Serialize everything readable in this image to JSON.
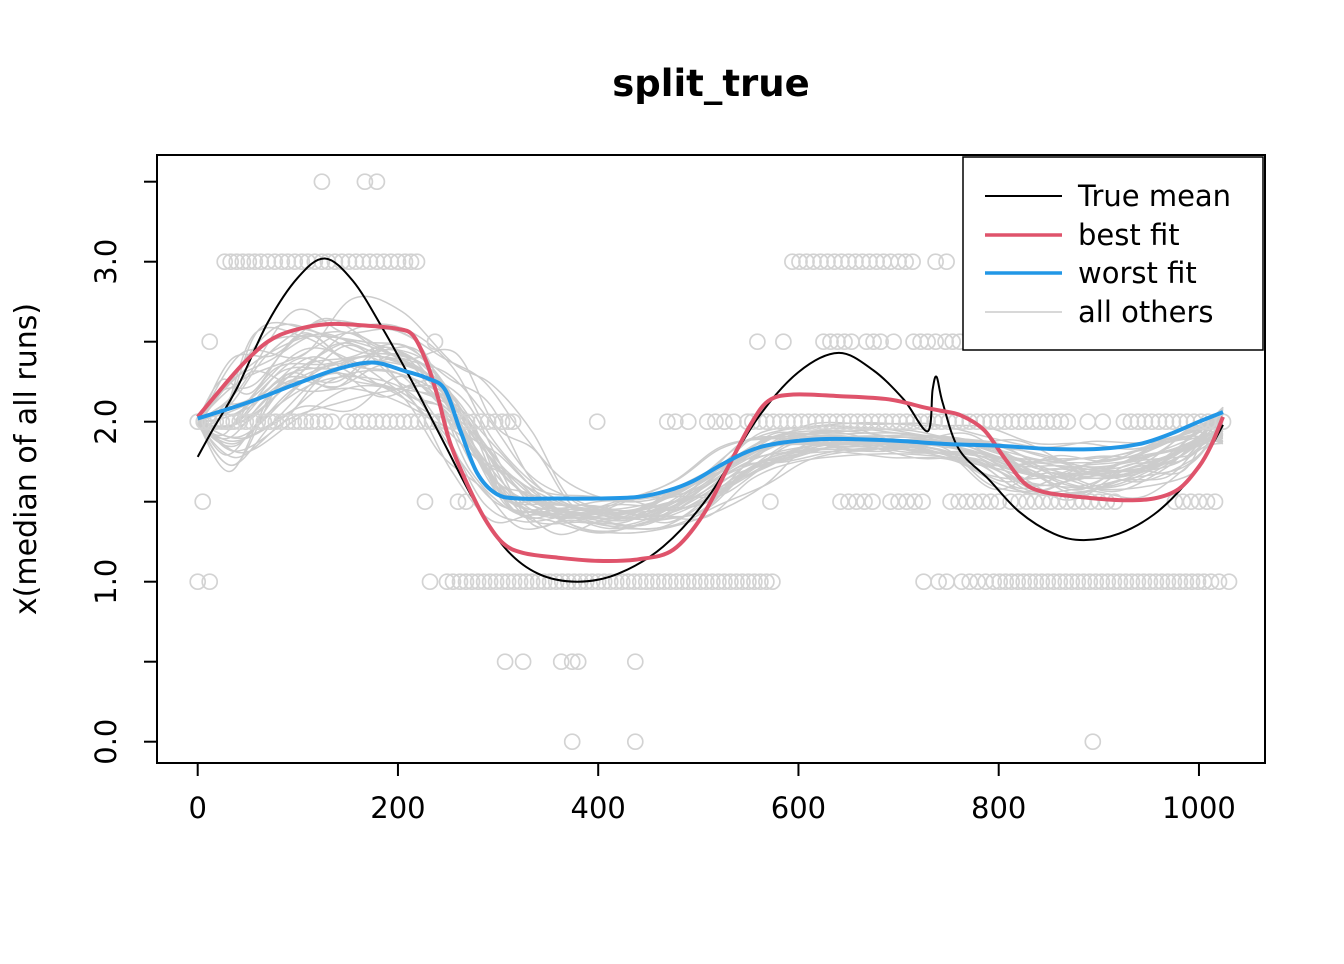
{
  "title": "split_true",
  "colors": {
    "true_mean": "#000000",
    "best_fit": "#DF536B",
    "worst_fit": "#2297E6",
    "ensemble_line": "#CCCCCC",
    "scatter_circle": "#D3D3D3",
    "axis": "#000000",
    "background": "#FFFFFF"
  },
  "chart_data": {
    "type": "line",
    "title": "split_true",
    "xlabel": "",
    "ylabel": "x(median of all runs)",
    "xlim": [
      -40,
      1066
    ],
    "ylim": [
      -0.15,
      3.67
    ],
    "x_ticks": [
      0,
      200,
      400,
      600,
      800,
      1000
    ],
    "y_ticks_labeled": [
      0.0,
      1.0,
      2.0,
      3.0
    ],
    "y_ticks_minor": [
      0.5,
      1.5,
      2.5,
      3.5
    ],
    "grid": "off",
    "legend": {
      "position": "top-right",
      "entries": [
        {
          "label": "True mean",
          "color": "#000000",
          "width": 2
        },
        {
          "label": "best fit",
          "color": "#DF536B",
          "width": 3.5
        },
        {
          "label": "worst fit",
          "color": "#2297E6",
          "width": 3.5
        },
        {
          "label": "all others",
          "color": "#CCCCCC",
          "width": 1.5
        }
      ]
    },
    "series": [
      {
        "name": "True mean",
        "color": "#000000",
        "width": 2,
        "points": [
          [
            0,
            1.78
          ],
          [
            15,
            1.95
          ],
          [
            40,
            2.22
          ],
          [
            70,
            2.62
          ],
          [
            100,
            2.9
          ],
          [
            127,
            3.02
          ],
          [
            155,
            2.88
          ],
          [
            185,
            2.58
          ],
          [
            215,
            2.24
          ],
          [
            245,
            1.88
          ],
          [
            275,
            1.52
          ],
          [
            307,
            1.21
          ],
          [
            340,
            1.05
          ],
          [
            379,
            1.0
          ],
          [
            420,
            1.05
          ],
          [
            465,
            1.22
          ],
          [
            510,
            1.53
          ],
          [
            559,
            2.02
          ],
          [
            600,
            2.31
          ],
          [
            640,
            2.43
          ],
          [
            675,
            2.32
          ],
          [
            705,
            2.14
          ],
          [
            729,
            1.94
          ],
          [
            734,
            2.2
          ],
          [
            738,
            2.28
          ],
          [
            744,
            2.12
          ],
          [
            760,
            1.83
          ],
          [
            790,
            1.64
          ],
          [
            820,
            1.44
          ],
          [
            855,
            1.3
          ],
          [
            885,
            1.26
          ],
          [
            920,
            1.3
          ],
          [
            955,
            1.42
          ],
          [
            985,
            1.6
          ],
          [
            1008,
            1.8
          ],
          [
            1024,
            1.98
          ]
        ]
      },
      {
        "name": "best fit",
        "color": "#DF536B",
        "width": 4,
        "points": [
          [
            0,
            2.03
          ],
          [
            20,
            2.18
          ],
          [
            45,
            2.36
          ],
          [
            70,
            2.5
          ],
          [
            95,
            2.57
          ],
          [
            130,
            2.61
          ],
          [
            170,
            2.6
          ],
          [
            200,
            2.58
          ],
          [
            215,
            2.54
          ],
          [
            228,
            2.38
          ],
          [
            240,
            2.15
          ],
          [
            252,
            1.87
          ],
          [
            270,
            1.6
          ],
          [
            287,
            1.39
          ],
          [
            305,
            1.24
          ],
          [
            325,
            1.18
          ],
          [
            360,
            1.15
          ],
          [
            400,
            1.13
          ],
          [
            440,
            1.14
          ],
          [
            475,
            1.2
          ],
          [
            505,
            1.42
          ],
          [
            530,
            1.72
          ],
          [
            552,
            1.98
          ],
          [
            570,
            2.13
          ],
          [
            595,
            2.17
          ],
          [
            640,
            2.16
          ],
          [
            690,
            2.14
          ],
          [
            725,
            2.09
          ],
          [
            741,
            2.07
          ],
          [
            762,
            2.04
          ],
          [
            785,
            1.95
          ],
          [
            805,
            1.78
          ],
          [
            825,
            1.62
          ],
          [
            845,
            1.56
          ],
          [
            880,
            1.53
          ],
          [
            920,
            1.51
          ],
          [
            955,
            1.52
          ],
          [
            980,
            1.58
          ],
          [
            1000,
            1.72
          ],
          [
            1012,
            1.85
          ],
          [
            1024,
            2.03
          ]
        ]
      },
      {
        "name": "worst fit",
        "color": "#2297E6",
        "width": 4,
        "points": [
          [
            0,
            2.02
          ],
          [
            50,
            2.12
          ],
          [
            100,
            2.24
          ],
          [
            140,
            2.33
          ],
          [
            175,
            2.37
          ],
          [
            205,
            2.32
          ],
          [
            230,
            2.27
          ],
          [
            247,
            2.2
          ],
          [
            262,
            1.95
          ],
          [
            279,
            1.68
          ],
          [
            298,
            1.55
          ],
          [
            320,
            1.52
          ],
          [
            360,
            1.52
          ],
          [
            400,
            1.52
          ],
          [
            440,
            1.53
          ],
          [
            470,
            1.57
          ],
          [
            495,
            1.63
          ],
          [
            520,
            1.72
          ],
          [
            548,
            1.81
          ],
          [
            575,
            1.86
          ],
          [
            620,
            1.89
          ],
          [
            660,
            1.89
          ],
          [
            700,
            1.88
          ],
          [
            750,
            1.86
          ],
          [
            800,
            1.85
          ],
          [
            850,
            1.83
          ],
          [
            900,
            1.83
          ],
          [
            940,
            1.86
          ],
          [
            970,
            1.92
          ],
          [
            1000,
            2.0
          ],
          [
            1024,
            2.06
          ]
        ]
      }
    ],
    "ensemble": {
      "name": "all others",
      "color": "#CCCCCC",
      "width": 1.5,
      "count": 38,
      "seed": 13,
      "knots_x": [
        0,
        35,
        80,
        130,
        180,
        230,
        270,
        310,
        350,
        400,
        450,
        500,
        545,
        590,
        650,
        710,
        770,
        820,
        870,
        920,
        970,
        1000,
        1024
      ],
      "base": [
        2.02,
        2.05,
        2.3,
        2.42,
        2.42,
        2.28,
        1.95,
        1.62,
        1.45,
        1.42,
        1.44,
        1.55,
        1.75,
        1.86,
        1.89,
        1.87,
        1.83,
        1.72,
        1.68,
        1.7,
        1.78,
        1.9,
        2.05
      ],
      "spread": [
        0.03,
        0.5,
        0.42,
        0.35,
        0.32,
        0.3,
        0.35,
        0.3,
        0.17,
        0.15,
        0.15,
        0.17,
        0.17,
        0.13,
        0.12,
        0.12,
        0.13,
        0.2,
        0.2,
        0.18,
        0.15,
        0.1,
        0.09
      ]
    },
    "scatter": {
      "color": "#D3D3D3",
      "radius": 7.5,
      "rows": [
        {
          "y": 3.5,
          "x": [
            124,
            167,
            179
          ]
        },
        {
          "y": 3.0,
          "x": [
            27,
            33,
            39,
            45,
            51,
            57,
            63,
            70,
            77,
            84,
            90,
            97,
            104,
            110,
            117,
            124,
            130,
            137,
            144,
            151,
            158,
            165,
            172,
            179,
            186,
            193,
            200,
            207,
            213,
            219,
            594,
            601,
            608,
            615,
            622,
            629,
            636,
            643,
            650,
            657,
            664,
            671,
            678,
            685,
            692,
            700,
            707,
            714,
            737,
            748
          ]
        },
        {
          "y": 2.5,
          "x": [
            12,
            237,
            559,
            585,
            625,
            632,
            639,
            646,
            653,
            668,
            675,
            682,
            695,
            715,
            722,
            729,
            737,
            747,
            754,
            761
          ]
        },
        {
          "y": 2.0,
          "x": [
            0,
            6,
            12,
            18,
            24,
            30,
            36,
            42,
            48,
            54,
            60,
            66,
            72,
            78,
            84,
            90,
            96,
            102,
            108,
            114,
            120,
            127,
            134,
            150,
            157,
            164,
            171,
            178,
            185,
            192,
            199,
            206,
            213,
            220,
            227,
            234,
            241,
            248,
            255,
            262,
            269,
            276,
            283,
            290,
            297,
            304,
            310,
            315,
            399,
            469,
            477,
            490,
            509,
            517,
            526,
            535,
            549,
            554,
            561,
            568,
            575,
            582,
            589,
            596,
            603,
            610,
            617,
            624,
            631,
            638,
            645,
            652,
            659,
            666,
            673,
            680,
            687,
            694,
            701,
            708,
            715,
            722,
            729,
            736,
            743,
            750,
            757,
            764,
            771,
            778,
            785,
            792,
            799,
            806,
            813,
            820,
            827,
            834,
            841,
            848,
            855,
            862,
            869,
            889,
            904,
            925,
            932,
            939,
            946,
            953,
            960,
            967,
            974,
            981,
            988,
            995,
            1002,
            1009,
            1016,
            1024
          ]
        },
        {
          "y": 1.5,
          "x": [
            5,
            227,
            260,
            268,
            572,
            642,
            650,
            658,
            666,
            674,
            692,
            700,
            708,
            716,
            724,
            752,
            760,
            768,
            776,
            784,
            792,
            800,
            812,
            820,
            828,
            836,
            844,
            852,
            860,
            868,
            876,
            884,
            892,
            900,
            908,
            916,
            976,
            984,
            992,
            1000,
            1008,
            1016
          ]
        },
        {
          "y": 1.0,
          "x": [
            0,
            12,
            232,
            249,
            255,
            262,
            268,
            274,
            280,
            286,
            292,
            298,
            304,
            310,
            316,
            322,
            328,
            334,
            340,
            346,
            352,
            358,
            364,
            370,
            376,
            382,
            388,
            394,
            400,
            406,
            412,
            418,
            424,
            430,
            436,
            442,
            448,
            454,
            460,
            466,
            472,
            478,
            484,
            490,
            496,
            502,
            508,
            514,
            520,
            526,
            532,
            538,
            544,
            550,
            556,
            562,
            568,
            574,
            725,
            740,
            748,
            763,
            771,
            779,
            787,
            795,
            801,
            807,
            813,
            819,
            825,
            831,
            837,
            843,
            849,
            855,
            861,
            867,
            873,
            879,
            885,
            891,
            897,
            903,
            909,
            915,
            921,
            927,
            933,
            939,
            945,
            951,
            957,
            963,
            969,
            975,
            981,
            987,
            993,
            999,
            1005,
            1012,
            1020,
            1030
          ]
        },
        {
          "y": 0.5,
          "x": [
            307,
            325,
            363,
            374,
            380,
            437
          ]
        },
        {
          "y": 0.0,
          "x": [
            374,
            437,
            894
          ]
        }
      ]
    }
  }
}
